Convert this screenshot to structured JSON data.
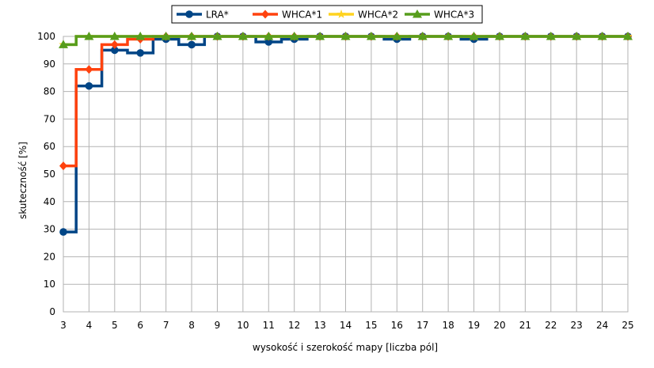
{
  "chart_data": {
    "type": "line",
    "step": true,
    "xlabel": "wysokość i szerokość mapy [liczba pól]",
    "ylabel": "skuteczność [%]",
    "x": [
      3,
      4,
      5,
      6,
      7,
      8,
      9,
      10,
      11,
      12,
      13,
      14,
      15,
      16,
      17,
      18,
      19,
      20,
      21,
      22,
      23,
      24,
      25
    ],
    "xlim": [
      3,
      25
    ],
    "ylim": [
      0,
      100
    ],
    "yticks": [
      0,
      10,
      20,
      30,
      40,
      50,
      60,
      70,
      80,
      90,
      100
    ],
    "grid": true,
    "legend": "top",
    "series": [
      {
        "name": "LRA*",
        "color": "#004586",
        "marker": "circle",
        "values": [
          29,
          82,
          95,
          94,
          99,
          97,
          100,
          100,
          98,
          99,
          100,
          100,
          100,
          99,
          100,
          100,
          99,
          100,
          100,
          100,
          100,
          100,
          100
        ]
      },
      {
        "name": "WHCA*1",
        "color": "#ff420e",
        "marker": "diamond",
        "values": [
          53,
          88,
          97,
          99,
          100,
          100,
          100,
          100,
          100,
          100,
          100,
          100,
          100,
          100,
          100,
          100,
          100,
          100,
          100,
          100,
          100,
          100,
          100
        ]
      },
      {
        "name": "WHCA*2",
        "color": "#ffd320",
        "marker": "star",
        "values": [
          97,
          100,
          100,
          100,
          100,
          100,
          100,
          100,
          100,
          100,
          100,
          100,
          100,
          100,
          100,
          100,
          100,
          100,
          100,
          100,
          100,
          100,
          100
        ]
      },
      {
        "name": "WHCA*3",
        "color": "#579d1c",
        "marker": "triangle",
        "values": [
          97,
          100,
          100,
          100,
          100,
          100,
          100,
          100,
          100,
          100,
          100,
          100,
          100,
          100,
          100,
          100,
          100,
          100,
          100,
          100,
          100,
          100,
          100
        ]
      }
    ]
  }
}
